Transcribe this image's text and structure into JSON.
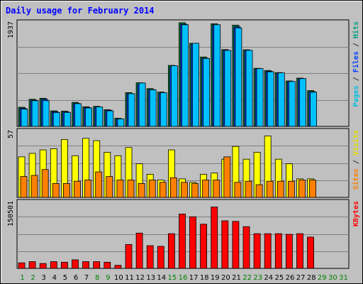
{
  "chart_data": {
    "type": "bar",
    "title": "Daily usage for February 2014",
    "days": [
      "1",
      "2",
      "3",
      "4",
      "5",
      "6",
      "7",
      "8",
      "9",
      "10",
      "11",
      "12",
      "13",
      "14",
      "15",
      "16",
      "17",
      "18",
      "19",
      "20",
      "21",
      "22",
      "23",
      "24",
      "25",
      "26",
      "27",
      "28",
      "29",
      "30",
      "31"
    ],
    "weekend_days": [
      1,
      2,
      8,
      9,
      15,
      16,
      22,
      23
    ],
    "days_in_month": 28,
    "panels": [
      {
        "id": "hits",
        "ymax_label": "1937",
        "ymax": 1937,
        "label_parts": [
          "Pages",
          " / ",
          "Files",
          " / ",
          "Hits"
        ],
        "label_colors": [
          "#00c0e0",
          "#333333",
          "#0040ff",
          "#333333",
          "#00a080"
        ],
        "series": [
          {
            "name": "Hits",
            "color": "#008040",
            "values": [
              358,
              507,
              526,
              290,
              284,
              448,
              367,
              374,
              312,
              153,
              632,
              816,
              707,
              642,
              1139,
              1937,
              1553,
              1296,
              1917,
              1436,
              1892,
              1432,
              1085,
              1045,
              1006,
              849,
              902,
              669
            ]
          },
          {
            "name": "Files",
            "color": "#0040ff",
            "values": [
              340,
              490,
              505,
              275,
              272,
              430,
              352,
              360,
              300,
              140,
              612,
              790,
              686,
              622,
              1110,
              1910,
              1530,
              1275,
              1900,
              1420,
              1860,
              1410,
              1070,
              1030,
              990,
              835,
              885,
              650
            ]
          },
          {
            "name": "Pages",
            "color": "#00c0ff",
            "values": [
              322,
              480,
              482,
              260,
              262,
              424,
              343,
              363,
              290,
              140,
              612,
              810,
              683,
              630,
              1133,
              1900,
              1553,
              1270,
              1900,
              1420,
              1840,
              1422,
              1080,
              1020,
              1000,
              840,
              893,
              640
            ]
          }
        ]
      },
      {
        "id": "visits",
        "ymax_label": "57",
        "ymax": 57,
        "label_parts": [
          "Sites",
          " / ",
          "Visits"
        ],
        "label_colors": [
          "#ff8000",
          "#333333",
          "#e0e000"
        ],
        "series": [
          {
            "name": "Visits",
            "color": "#ffff00",
            "values": [
              35,
              38,
              41,
              42,
              50,
              36,
              51,
              49,
              39,
              36,
              43,
              29,
              20,
              15,
              41,
              16,
              13,
              20,
              21,
              33,
              44,
              33,
              39,
              53,
              33,
              29,
              16,
              16
            ]
          },
          {
            "name": "Sites",
            "color": "#ff8000",
            "values": [
              18,
              19,
              24,
              12,
              12,
              14,
              15,
              22,
              18,
              15,
              15,
              12,
              15,
              13,
              17,
              13,
              12,
              15,
              15,
              35,
              13,
              14,
              11,
              14,
              14,
              14,
              15,
              15
            ]
          }
        ]
      },
      {
        "id": "kbytes",
        "ymax_label": "150501",
        "ymax": 150501,
        "label_parts": [
          "KBytes"
        ],
        "label_colors": [
          "#ff0000"
        ],
        "series": [
          {
            "name": "KBytes",
            "color": "#ff0000",
            "values": [
              12600,
              15400,
              11200,
              15400,
              14000,
              19600,
              15400,
              15400,
              14000,
              7000,
              54600,
              80500,
              51800,
              50400,
              79100,
              123900,
              117600,
              100800,
              140000,
              108500,
              107100,
              95200,
              79100,
              79100,
              79100,
              77700,
              79100,
              71400
            ]
          }
        ]
      }
    ]
  }
}
